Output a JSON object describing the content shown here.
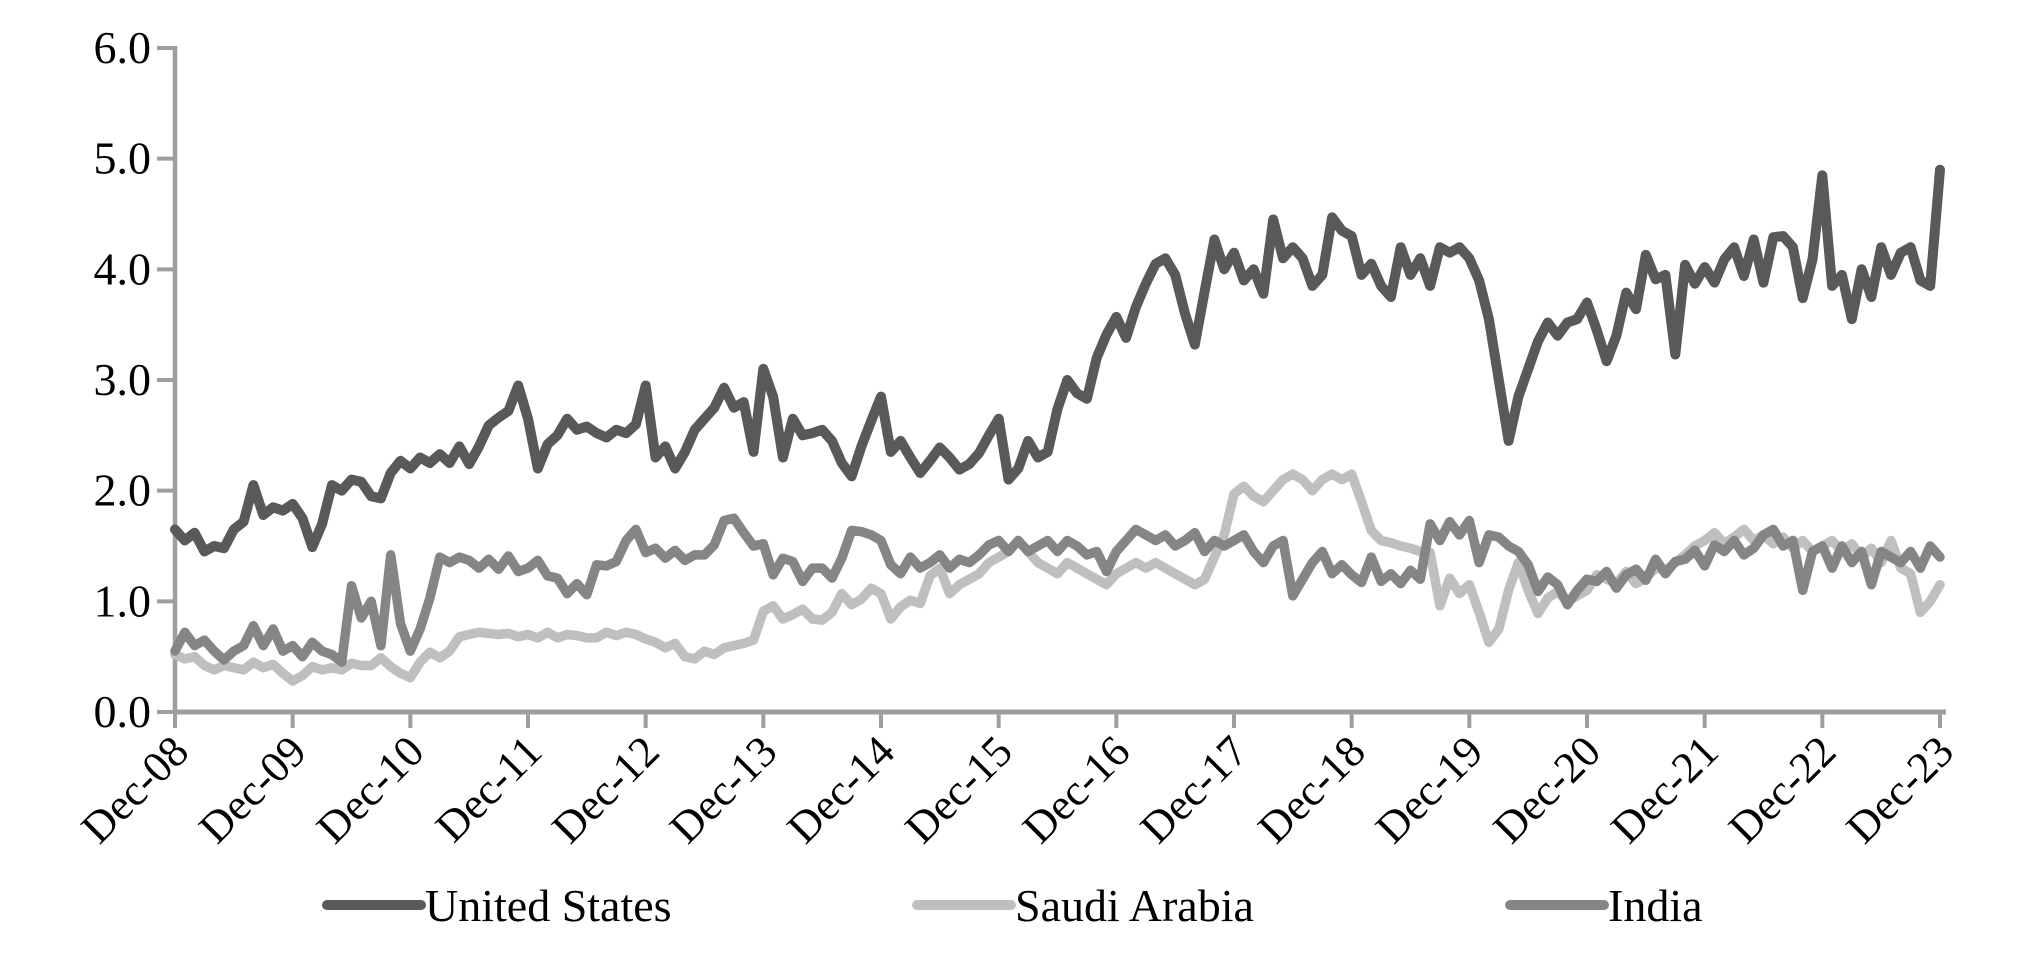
{
  "chart_data": {
    "type": "line",
    "title": "",
    "xlabel": "",
    "ylabel": "",
    "x_start": "Dec-08",
    "x_end": "Dec-23",
    "x_frequency": "monthly",
    "x_tick_labels": [
      "Dec-08",
      "Dec-09",
      "Dec-10",
      "Dec-11",
      "Dec-12",
      "Dec-13",
      "Dec-14",
      "Dec-15",
      "Dec-16",
      "Dec-17",
      "Dec-18",
      "Dec-19",
      "Dec-20",
      "Dec-21",
      "Dec-22",
      "Dec-23"
    ],
    "y_tick_labels": [
      "0.0",
      "1.0",
      "2.0",
      "3.0",
      "4.0",
      "5.0",
      "6.0"
    ],
    "ylim": [
      0.0,
      6.0
    ],
    "grid": false,
    "legend_position": "bottom",
    "axis_color": "#9e9e9e",
    "label_color": "#000000",
    "series": [
      {
        "name": "United States",
        "color": "#595959",
        "stroke_width": 10,
        "values": [
          1.65,
          1.55,
          1.62,
          1.45,
          1.5,
          1.48,
          1.65,
          1.72,
          2.05,
          1.78,
          1.85,
          1.82,
          1.88,
          1.75,
          1.49,
          1.7,
          2.05,
          2.0,
          2.1,
          2.08,
          1.95,
          1.93,
          2.16,
          2.27,
          2.2,
          2.3,
          2.25,
          2.33,
          2.25,
          2.4,
          2.24,
          2.4,
          2.59,
          2.66,
          2.72,
          2.95,
          2.65,
          2.2,
          2.42,
          2.5,
          2.65,
          2.55,
          2.58,
          2.52,
          2.48,
          2.55,
          2.52,
          2.6,
          2.95,
          2.3,
          2.4,
          2.2,
          2.35,
          2.55,
          2.65,
          2.75,
          2.93,
          2.75,
          2.8,
          2.35,
          3.1,
          2.85,
          2.3,
          2.65,
          2.5,
          2.52,
          2.55,
          2.45,
          2.25,
          2.13,
          2.4,
          2.63,
          2.85,
          2.35,
          2.45,
          2.3,
          2.16,
          2.27,
          2.39,
          2.3,
          2.19,
          2.24,
          2.34,
          2.5,
          2.65,
          2.1,
          2.2,
          2.45,
          2.3,
          2.35,
          2.74,
          3.0,
          2.88,
          2.83,
          3.2,
          3.41,
          3.57,
          3.38,
          3.66,
          3.87,
          4.05,
          4.1,
          3.95,
          3.6,
          3.32,
          3.8,
          4.27,
          4.0,
          4.15,
          3.9,
          4.0,
          3.78,
          4.45,
          4.1,
          4.2,
          4.1,
          3.85,
          3.95,
          4.47,
          4.35,
          4.3,
          3.95,
          4.05,
          3.85,
          3.75,
          4.2,
          3.95,
          4.1,
          3.85,
          4.2,
          4.15,
          4.2,
          4.1,
          3.9,
          3.55,
          3.0,
          2.45,
          2.85,
          3.1,
          3.35,
          3.52,
          3.4,
          3.52,
          3.55,
          3.7,
          3.45,
          3.17,
          3.4,
          3.79,
          3.64,
          4.13,
          3.91,
          3.95,
          3.23,
          4.04,
          3.87,
          4.02,
          3.88,
          4.09,
          4.2,
          3.94,
          4.27,
          3.88,
          4.29,
          4.3,
          4.2,
          3.74,
          4.09,
          4.85,
          3.85,
          3.95,
          3.55,
          4.0,
          3.75,
          4.2,
          3.95,
          4.15,
          4.2,
          3.9,
          3.85,
          4.9
        ]
      },
      {
        "name": "Saudi Arabia",
        "color": "#bfbfbf",
        "stroke_width": 9.5,
        "values": [
          0.52,
          0.48,
          0.5,
          0.42,
          0.38,
          0.42,
          0.4,
          0.38,
          0.45,
          0.4,
          0.43,
          0.35,
          0.28,
          0.33,
          0.41,
          0.38,
          0.4,
          0.38,
          0.44,
          0.42,
          0.42,
          0.49,
          0.41,
          0.35,
          0.31,
          0.45,
          0.54,
          0.49,
          0.55,
          0.68,
          0.7,
          0.72,
          0.71,
          0.7,
          0.71,
          0.68,
          0.7,
          0.67,
          0.72,
          0.67,
          0.7,
          0.69,
          0.67,
          0.67,
          0.72,
          0.69,
          0.72,
          0.7,
          0.66,
          0.63,
          0.58,
          0.62,
          0.5,
          0.48,
          0.55,
          0.52,
          0.58,
          0.6,
          0.62,
          0.65,
          0.91,
          0.96,
          0.84,
          0.88,
          0.93,
          0.84,
          0.83,
          0.9,
          1.07,
          0.97,
          1.02,
          1.12,
          1.07,
          0.84,
          0.95,
          1.01,
          0.98,
          1.23,
          1.3,
          1.07,
          1.15,
          1.2,
          1.25,
          1.35,
          1.4,
          1.45,
          1.55,
          1.45,
          1.35,
          1.3,
          1.25,
          1.35,
          1.3,
          1.25,
          1.2,
          1.15,
          1.25,
          1.3,
          1.35,
          1.3,
          1.35,
          1.3,
          1.25,
          1.2,
          1.15,
          1.2,
          1.4,
          1.6,
          1.97,
          2.04,
          1.95,
          1.9,
          2.0,
          2.1,
          2.15,
          2.1,
          2.0,
          2.1,
          2.15,
          2.1,
          2.15,
          1.9,
          1.64,
          1.55,
          1.53,
          1.5,
          1.48,
          1.45,
          1.44,
          0.96,
          1.21,
          1.07,
          1.15,
          0.9,
          0.63,
          0.75,
          1.1,
          1.35,
          1.1,
          0.89,
          1.03,
          1.09,
          1.0,
          1.05,
          1.1,
          1.24,
          1.2,
          1.16,
          1.27,
          1.16,
          1.21,
          1.3,
          1.28,
          1.35,
          1.42,
          1.5,
          1.55,
          1.62,
          1.52,
          1.58,
          1.65,
          1.55,
          1.6,
          1.52,
          1.58,
          1.48,
          1.55,
          1.45,
          1.5,
          1.55,
          1.45,
          1.52,
          1.4,
          1.48,
          1.35,
          1.55,
          1.3,
          1.25,
          0.9,
          1.0,
          1.15
        ]
      },
      {
        "name": "India",
        "color": "#858585",
        "stroke_width": 9.5,
        "values": [
          0.55,
          0.72,
          0.6,
          0.65,
          0.55,
          0.47,
          0.55,
          0.6,
          0.78,
          0.6,
          0.75,
          0.55,
          0.6,
          0.5,
          0.63,
          0.55,
          0.52,
          0.45,
          1.14,
          0.85,
          1.0,
          0.6,
          1.42,
          0.8,
          0.55,
          0.75,
          1.03,
          1.4,
          1.35,
          1.4,
          1.37,
          1.3,
          1.38,
          1.29,
          1.41,
          1.27,
          1.3,
          1.37,
          1.23,
          1.21,
          1.07,
          1.16,
          1.06,
          1.33,
          1.32,
          1.36,
          1.55,
          1.65,
          1.44,
          1.48,
          1.39,
          1.46,
          1.37,
          1.42,
          1.42,
          1.51,
          1.73,
          1.75,
          1.62,
          1.5,
          1.52,
          1.24,
          1.39,
          1.36,
          1.18,
          1.3,
          1.3,
          1.21,
          1.39,
          1.64,
          1.63,
          1.6,
          1.55,
          1.33,
          1.25,
          1.4,
          1.3,
          1.35,
          1.42,
          1.3,
          1.38,
          1.35,
          1.42,
          1.51,
          1.55,
          1.45,
          1.55,
          1.45,
          1.5,
          1.55,
          1.45,
          1.55,
          1.5,
          1.42,
          1.45,
          1.27,
          1.45,
          1.55,
          1.65,
          1.6,
          1.55,
          1.6,
          1.5,
          1.55,
          1.62,
          1.45,
          1.55,
          1.5,
          1.55,
          1.6,
          1.45,
          1.35,
          1.5,
          1.55,
          1.05,
          1.2,
          1.35,
          1.45,
          1.25,
          1.33,
          1.24,
          1.17,
          1.4,
          1.18,
          1.25,
          1.16,
          1.28,
          1.2,
          1.7,
          1.55,
          1.72,
          1.6,
          1.73,
          1.35,
          1.6,
          1.58,
          1.5,
          1.45,
          1.33,
          1.09,
          1.22,
          1.15,
          0.97,
          1.1,
          1.2,
          1.18,
          1.27,
          1.12,
          1.24,
          1.29,
          1.19,
          1.38,
          1.25,
          1.36,
          1.38,
          1.46,
          1.32,
          1.51,
          1.45,
          1.55,
          1.42,
          1.48,
          1.6,
          1.65,
          1.5,
          1.55,
          1.1,
          1.45,
          1.5,
          1.3,
          1.5,
          1.35,
          1.45,
          1.15,
          1.45,
          1.4,
          1.35,
          1.45,
          1.3,
          1.5,
          1.4
        ]
      }
    ],
    "legend": [
      {
        "label": "United States",
        "color": "#595959"
      },
      {
        "label": "Saudi Arabia",
        "color": "#bfbfbf"
      },
      {
        "label": "India",
        "color": "#858585"
      }
    ]
  }
}
